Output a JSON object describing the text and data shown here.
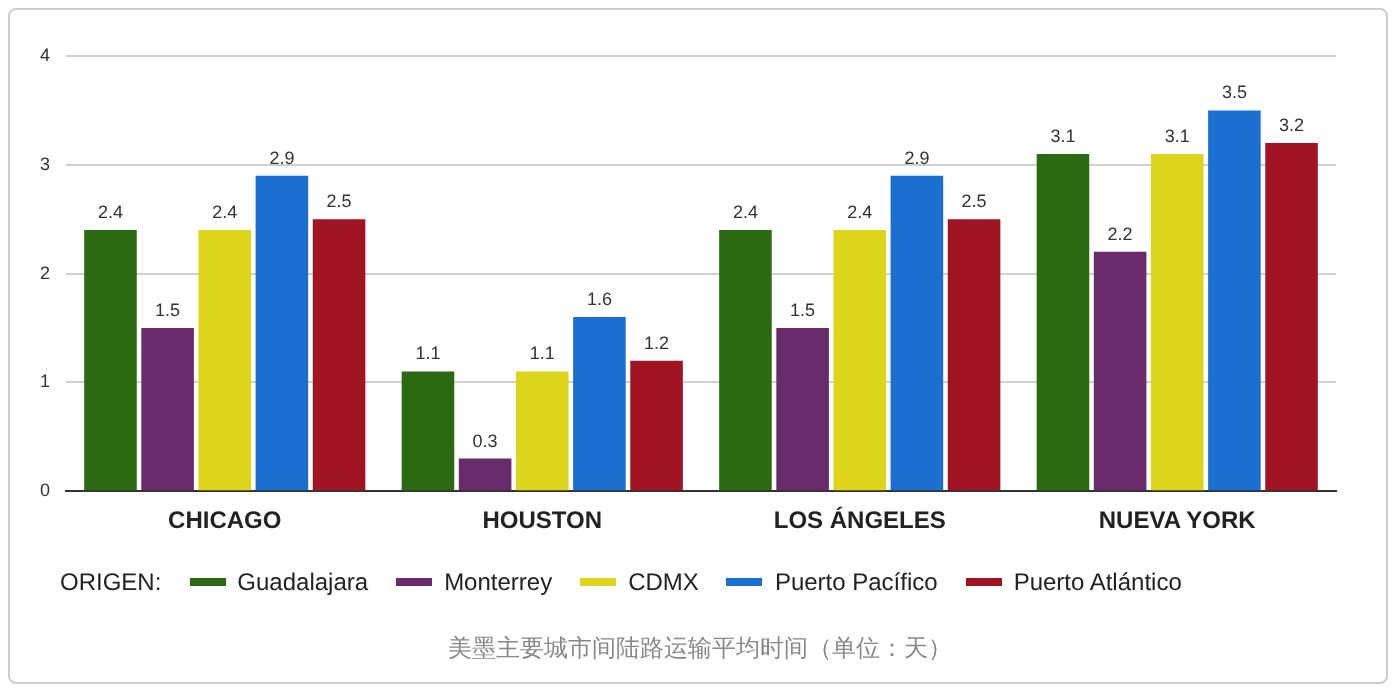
{
  "chart_data": {
    "type": "bar",
    "categories": [
      "CHICAGO",
      "HOUSTON",
      "LOS ÁNGELES",
      "NUEVA YORK"
    ],
    "series": [
      {
        "name": "Guadalajara",
        "color": "#2c6a12",
        "values": [
          2.4,
          1.1,
          2.4,
          3.1
        ]
      },
      {
        "name": "Monterrey",
        "color": "#6a2b6c",
        "values": [
          1.5,
          0.3,
          1.5,
          2.2
        ]
      },
      {
        "name": "CDMX",
        "color": "#dcd51c",
        "values": [
          2.4,
          1.1,
          2.4,
          3.1
        ]
      },
      {
        "name": "Puerto Pacífico",
        "color": "#1b6fd1",
        "values": [
          2.9,
          1.6,
          2.9,
          3.5
        ]
      },
      {
        "name": "Puerto Atlántico",
        "color": "#a11424",
        "values": [
          2.5,
          1.2,
          2.5,
          3.2
        ]
      }
    ],
    "ylim": [
      0,
      4
    ],
    "yticks": [
      0,
      1,
      2,
      3,
      4
    ],
    "grid": "y",
    "legend": "bottom",
    "legend_title": "ORIGEN:",
    "data_labels": true,
    "annotations": [
      "美墨主要城市间陆路运输平均时间（单位：天）"
    ]
  }
}
